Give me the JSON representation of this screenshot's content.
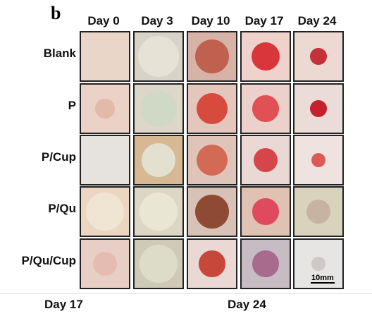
{
  "panel_label": "b",
  "columns": [
    "Day 0",
    "Day 3",
    "Day 10",
    "Day 17",
    "Day 24"
  ],
  "rows": [
    "Blank",
    "P",
    "P/Cup",
    "P/Qu",
    "P/Qu/Cup"
  ],
  "scale_bar": "10mm",
  "bottom_labels": [
    "Day 17",
    "Day 24"
  ]
}
